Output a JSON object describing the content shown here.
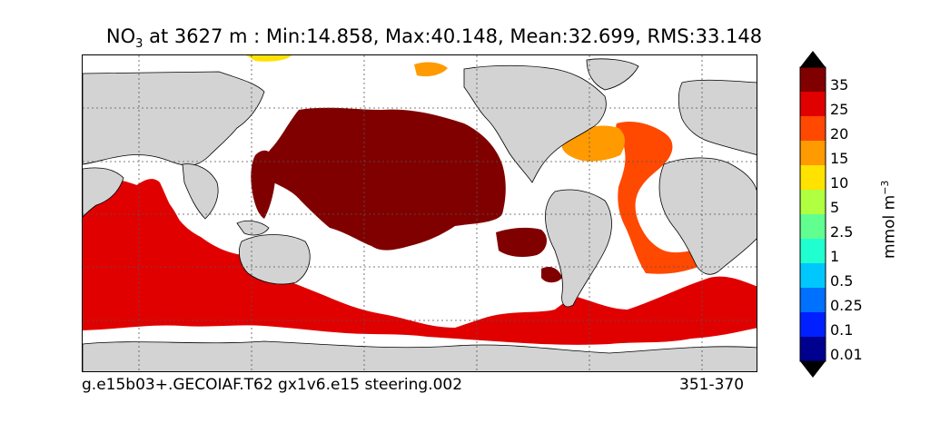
{
  "title": {
    "variable": "NO",
    "subscript": "3",
    "text": " at 3627 m : Min:14.858, Max:40.148, Mean:32.699, RMS:33.148"
  },
  "footer": {
    "run_name": "g.e15b03+.GECOIAF.T62 gx1v6.e15 steering.002",
    "years": "351-370"
  },
  "colorbar": {
    "units_base": "mmol m",
    "units_exp": "−3",
    "labels": [
      "35",
      "25",
      "20",
      "15",
      "10",
      "5",
      "2.5",
      "1",
      "0.5",
      "0.25",
      "0.1",
      "0.01"
    ],
    "colors": [
      "#800000",
      "#e00000",
      "#ff4800",
      "#ff9a00",
      "#ffe200",
      "#b0ff40",
      "#60ff90",
      "#20ffd0",
      "#00c8ff",
      "#0070ff",
      "#0020ff",
      "#00008f"
    ]
  },
  "map": {
    "land_color": "#d3d3d3",
    "ocean_fill_colors": {
      "pacific_deep": "#800000",
      "southern_ocean": "#e00000",
      "atlantic": "#ff4800",
      "north_atlantic": "#ff9a00",
      "arctic_patch": "#ffe200"
    },
    "grid": true
  }
}
